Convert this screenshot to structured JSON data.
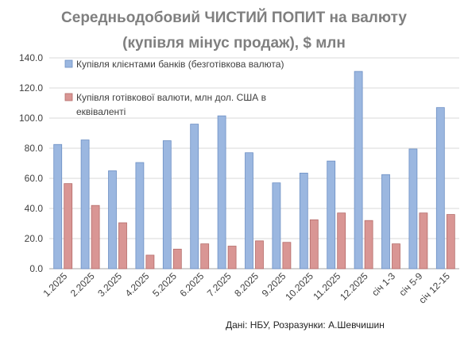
{
  "chart_data": {
    "type": "bar",
    "title": "Середньодобовий ЧИСТИЙ ПОПИТ на валюту",
    "subtitle": "(купівля мінус продаж), $ млн",
    "categories": [
      "1.2025",
      "2.2025",
      "3.2025",
      "4.2025",
      "5.2025",
      "6.2025",
      "7.2025",
      "8.2025",
      "9.2025",
      "10.2025",
      "11.2025",
      "12.2025",
      "січ 1-3",
      "січ 5-9",
      "січ 12-15"
    ],
    "series": [
      {
        "name": "Купівля клієнтами банків (безготівкова валюта)",
        "color": "#9bb7e0",
        "values": [
          82.5,
          85.5,
          65.0,
          70.5,
          85.0,
          96.0,
          101.5,
          77.0,
          57.0,
          63.5,
          71.5,
          131.0,
          62.5,
          79.5,
          107.0
        ]
      },
      {
        "name": "Купівля готівкової валюти, млн дол. США в еквіваленті",
        "color": "#d99694",
        "values": [
          56.5,
          42.0,
          30.5,
          9.0,
          13.0,
          16.5,
          15.0,
          18.5,
          17.5,
          32.5,
          37.0,
          32.0,
          16.5,
          37.0,
          36.0
        ]
      }
    ],
    "ylim": [
      0,
      140
    ],
    "yticks": [
      "0.0",
      "20.0",
      "40.0",
      "60.0",
      "80.0",
      "100.0",
      "120.0",
      "140.0"
    ],
    "grid": true,
    "legend_position": "top-left inside plot"
  },
  "source": "Дані: НБУ, Розразунки: А.Шевчишин"
}
